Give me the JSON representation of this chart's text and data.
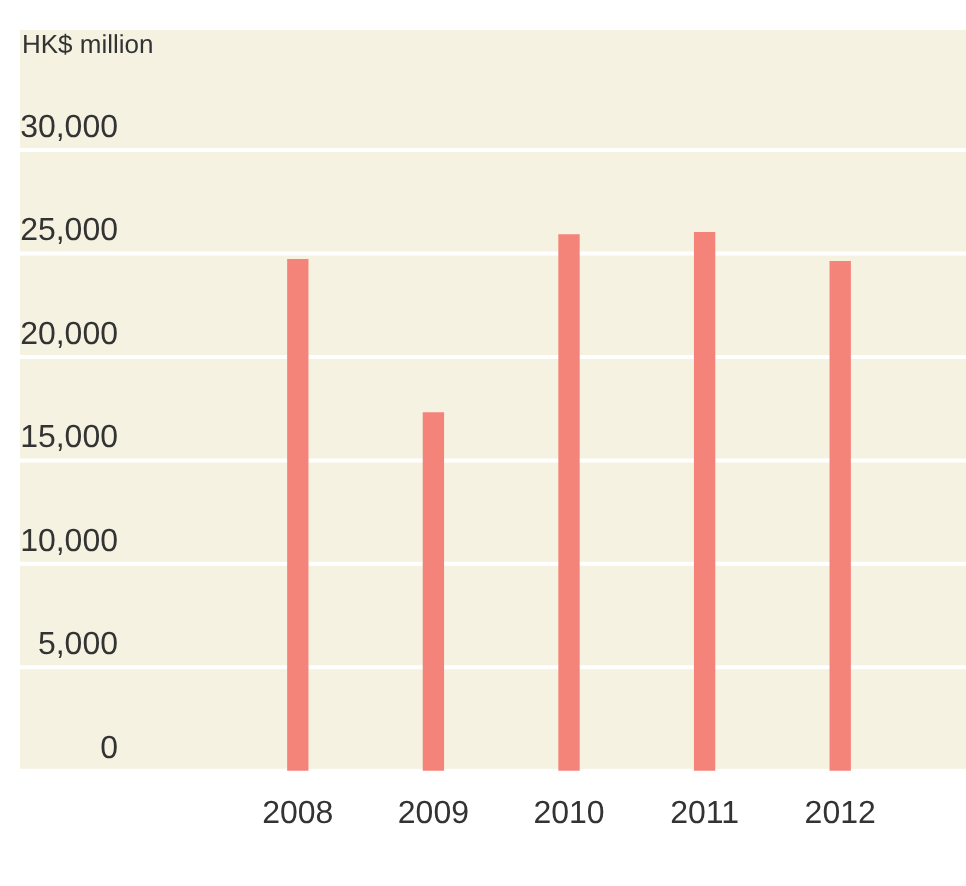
{
  "chart_data": {
    "type": "bar",
    "ylabel": "HK$ million",
    "categories": [
      "2008",
      "2009",
      "2010",
      "2011",
      "2012"
    ],
    "values": [
      24700,
      17300,
      25900,
      26000,
      24600
    ],
    "color": "#f48379",
    "ylim": [
      0,
      30000
    ],
    "yticks": [
      {
        "value": 0,
        "label": "0"
      },
      {
        "value": 5000,
        "label": "5,000"
      },
      {
        "value": 10000,
        "label": "10,000"
      },
      {
        "value": 15000,
        "label": "15,000"
      },
      {
        "value": 20000,
        "label": "20,000"
      },
      {
        "value": 25000,
        "label": "25,000"
      },
      {
        "value": 30000,
        "label": "30,000"
      }
    ],
    "grid": "y",
    "legend": false
  }
}
